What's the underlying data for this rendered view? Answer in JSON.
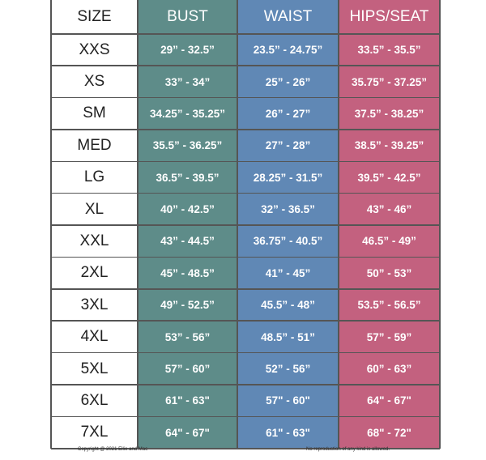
{
  "table": {
    "header": [
      "SIZE",
      "BUST",
      "WAIST",
      "HIPS/SEAT"
    ],
    "rows": [
      [
        "XXS",
        "29” - 32.5”",
        "23.5” - 24.75”",
        "33.5” - 35.5”"
      ],
      [
        "XS",
        "33” - 34”",
        "25” - 26”",
        "35.75” - 37.25”"
      ],
      [
        "SM",
        "34.25” - 35.25”",
        "26” - 27”",
        "37.5” - 38.25”"
      ],
      [
        "MED",
        "35.5” - 36.25”",
        "27” - 28”",
        "38.5” - 39.25”"
      ],
      [
        "LG",
        "36.5” - 39.5”",
        "28.25” - 31.5”",
        "39.5” - 42.5”"
      ],
      [
        "XL",
        "40” - 42.5”",
        "32” - 36.5”",
        "43” - 46”"
      ],
      [
        "XXL",
        "43” - 44.5”",
        "36.75” - 40.5”",
        "46.5” - 49”"
      ],
      [
        "2XL",
        "45” - 48.5”",
        "41” - 45”",
        "50” - 53”"
      ],
      [
        "3XL",
        "49” - 52.5”",
        "45.5” - 48”",
        "53.5” - 56.5”"
      ],
      [
        "4XL",
        "53” - 56”",
        "48.5” - 51”",
        "57” - 59”"
      ],
      [
        "5XL",
        "57” - 60”",
        "52” - 56”",
        "60” - 63”"
      ],
      [
        "6XL",
        "61\" - 63\"",
        "57\" - 60\"",
        "64\" - 67\""
      ],
      [
        "7XL",
        "64\" - 67\"",
        "61\" - 63\"",
        "68\" - 72\""
      ]
    ]
  },
  "footer": {
    "left": "Copyright @ 2021 Ellie and Mac",
    "right": "No reproduction of any kind is allowed."
  }
}
